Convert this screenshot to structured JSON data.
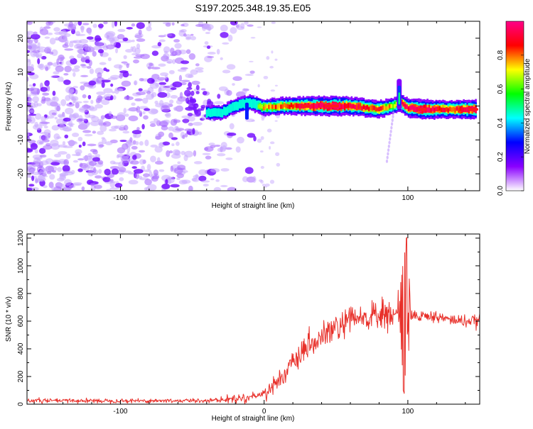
{
  "page_title": "S197.2025.348.19.35.E05",
  "chart_data": [
    {
      "type": "heatmap",
      "title": "",
      "xlabel": "Height of straight line (km)",
      "ylabel": "Frequency (Hz)",
      "xlim": [
        -165,
        150
      ],
      "ylim": [
        -25,
        25
      ],
      "xticks": [
        -100,
        0,
        100
      ],
      "yticks": [
        -20,
        -10,
        0,
        10,
        20
      ],
      "colorbar": {
        "label": "Normalized spectral amplitude",
        "range": [
          0,
          1
        ],
        "ticks": [
          "0.0",
          "0.2",
          "0.4",
          "0.6",
          "0.8"
        ],
        "colors": [
          "#ffffff",
          "#8a00ff",
          "#0000ff",
          "#00ffff",
          "#00ff00",
          "#ffff00",
          "#ff0000",
          "#ff0088"
        ]
      },
      "ridge": [
        {
          "x": -40,
          "y": -2,
          "v": 0.3
        },
        {
          "x": -30,
          "y": -2,
          "v": 0.35
        },
        {
          "x": -20,
          "y": 0,
          "v": 0.4
        },
        {
          "x": -10,
          "y": 1,
          "v": 0.45
        },
        {
          "x": 0,
          "y": -0.5,
          "v": 0.55
        },
        {
          "x": 10,
          "y": 0,
          "v": 0.65
        },
        {
          "x": 20,
          "y": 0,
          "v": 0.7
        },
        {
          "x": 30,
          "y": 0,
          "v": 0.85
        },
        {
          "x": 40,
          "y": 0,
          "v": 0.9
        },
        {
          "x": 50,
          "y": 0,
          "v": 0.95
        },
        {
          "x": 60,
          "y": 0,
          "v": 0.8
        },
        {
          "x": 70,
          "y": -0.5,
          "v": 0.75
        },
        {
          "x": 80,
          "y": -1,
          "v": 0.7
        },
        {
          "x": 90,
          "y": 0,
          "v": 0.5
        },
        {
          "x": 95,
          "y": 1,
          "v": 0.7
        },
        {
          "x": 100,
          "y": -0.5,
          "v": 0.85
        },
        {
          "x": 110,
          "y": -1,
          "v": 0.95
        },
        {
          "x": 120,
          "y": -1,
          "v": 0.8
        },
        {
          "x": 130,
          "y": -1,
          "v": 0.7
        },
        {
          "x": 140,
          "y": -1,
          "v": 0.85
        },
        {
          "x": 148,
          "y": -1,
          "v": 0.9
        }
      ]
    },
    {
      "type": "line",
      "title": "",
      "xlabel": "Height of straight line (km)",
      "ylabel": "SNR (10 * v/v)",
      "xlim": [
        -165,
        150
      ],
      "ylim": [
        0,
        1230
      ],
      "xticks": [
        -100,
        0,
        100
      ],
      "yticks": [
        0,
        200,
        400,
        600,
        800,
        1000,
        1200
      ],
      "color": "#e8302a",
      "series": [
        {
          "x": [
            -165,
            -150,
            -125,
            -100,
            -75,
            -50,
            -30,
            -20,
            -10,
            0,
            10,
            20,
            30,
            40,
            50,
            60,
            70,
            80,
            88,
            93,
            95,
            97,
            98,
            99,
            100,
            102,
            105,
            110,
            120,
            130,
            140,
            150
          ],
          "values": [
            25,
            25,
            25,
            25,
            25,
            25,
            30,
            40,
            50,
            80,
            170,
            290,
            400,
            480,
            550,
            600,
            625,
            640,
            640,
            660,
            1200,
            80,
            1200,
            60,
            1230,
            620,
            650,
            640,
            630,
            610,
            600,
            600
          ]
        }
      ]
    }
  ]
}
